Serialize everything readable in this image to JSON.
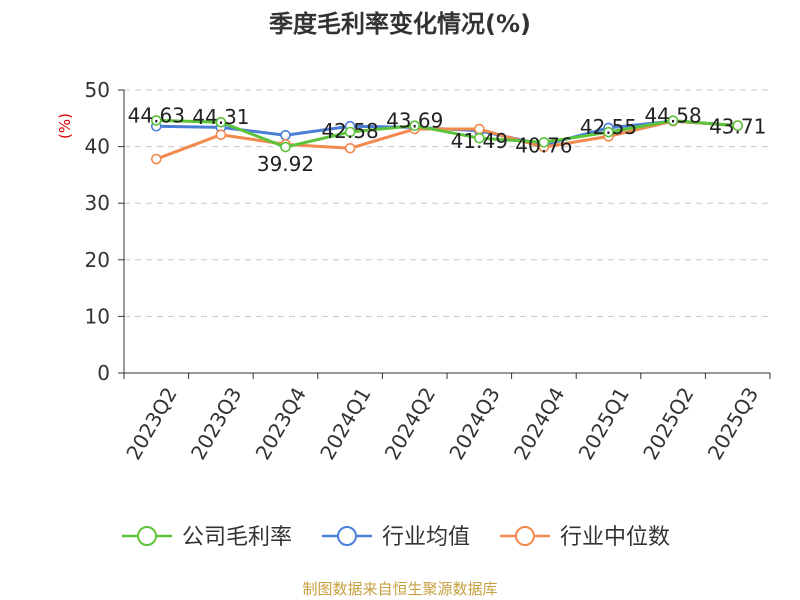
{
  "chart_data": {
    "type": "line",
    "title": "季度毛利率变化情况(%)",
    "ylabel": "(%)",
    "ylim": [
      0,
      50
    ],
    "yticks": [
      0,
      10,
      20,
      30,
      40,
      50
    ],
    "grid": true,
    "legend_position": "bottom",
    "categories": [
      "2023Q2",
      "2023Q3",
      "2023Q4",
      "2024Q1",
      "2024Q2",
      "2024Q3",
      "2024Q4",
      "2025Q1",
      "2025Q2",
      "2025Q3"
    ],
    "series": [
      {
        "name": "公司毛利率",
        "color": "#5cc43a",
        "values": [
          44.63,
          44.31,
          39.92,
          42.58,
          43.69,
          41.49,
          40.76,
          42.55,
          44.58,
          43.71
        ],
        "labels": [
          "44.63",
          "44.31",
          "39.92",
          "42.58",
          "43.69",
          "41.49",
          "40.76",
          "42.55",
          "44.58",
          "43.71"
        ]
      },
      {
        "name": "行业均值",
        "color": "#4a7fd8",
        "values": [
          43.6,
          43.4,
          42.0,
          43.6,
          43.4,
          42.8,
          40.3,
          43.3,
          44.5,
          43.7
        ]
      },
      {
        "name": "行业中位数",
        "color": "#f28a4e",
        "values": [
          37.8,
          42.1,
          40.4,
          39.7,
          43.1,
          43.1,
          39.9,
          41.8,
          44.5,
          43.7
        ]
      }
    ],
    "source": "制图数据来自恒生聚源数据库"
  }
}
